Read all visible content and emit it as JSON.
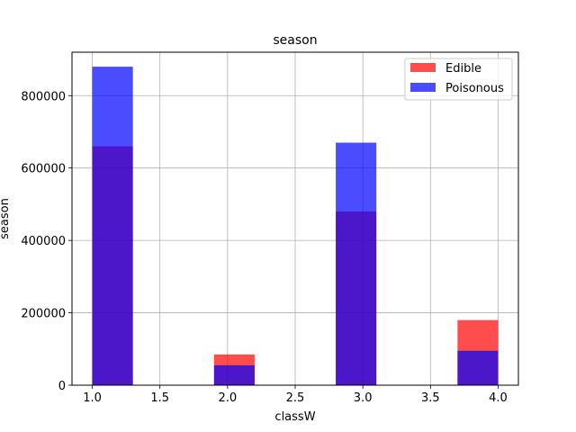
{
  "chart_data": {
    "type": "bar",
    "title": "season",
    "xlabel": "classW",
    "ylabel": "season",
    "xlim": [
      0.85,
      4.15
    ],
    "ylim": [
      0,
      920000
    ],
    "x_ticks": [
      1.0,
      1.5,
      2.0,
      2.5,
      3.0,
      3.5,
      4.0
    ],
    "x_tick_labels": [
      "1.0",
      "1.5",
      "2.0",
      "2.5",
      "3.0",
      "3.5",
      "4.0"
    ],
    "y_ticks": [
      0,
      200000,
      400000,
      600000,
      800000
    ],
    "y_tick_labels": [
      "0",
      "200000",
      "400000",
      "600000",
      "800000"
    ],
    "grid": true,
    "legend_position": "top-right",
    "bins": [
      {
        "start": 1.0,
        "end": 1.3
      },
      {
        "start": 1.9,
        "end": 2.2
      },
      {
        "start": 2.8,
        "end": 3.1
      },
      {
        "start": 3.7,
        "end": 4.0
      }
    ],
    "series": [
      {
        "name": "Edible",
        "color": "#ff0000",
        "alpha": 0.7,
        "values": [
          660000,
          85000,
          480000,
          180000
        ]
      },
      {
        "name": "Poisonous",
        "color": "#0000ff",
        "alpha": 0.7,
        "values": [
          880000,
          55000,
          670000,
          95000
        ]
      }
    ]
  }
}
